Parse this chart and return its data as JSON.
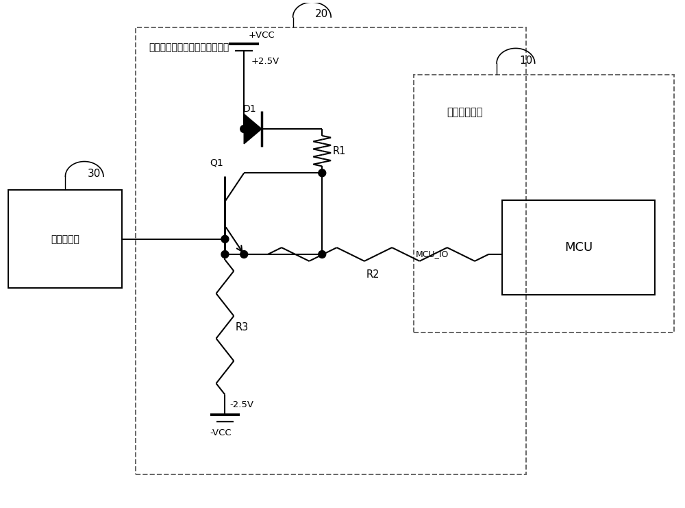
{
  "bg_color": "#ffffff",
  "line_color": "#000000",
  "dashed_color": "#666666",
  "fig_width": 10.0,
  "fig_height": 7.41,
  "label_20": "20",
  "label_10": "10",
  "label_30": "30",
  "label_vcc_plus": "+VCC",
  "label_vcc_minus": "-VCC",
  "label_25v_plus": "+2.5V",
  "label_25v_minus": "-2.5V",
  "label_D1": "D1",
  "label_Q1": "Q1",
  "label_R1": "R1",
  "label_R2": "R2",
  "label_R3": "R3",
  "label_MCU_IO": "MCU_IO",
  "label_MCU": "MCU",
  "label_box20": "双电源运放的逻辑电平转换装置",
  "label_box10": "电压输入模块",
  "label_box30": "双电源运放"
}
